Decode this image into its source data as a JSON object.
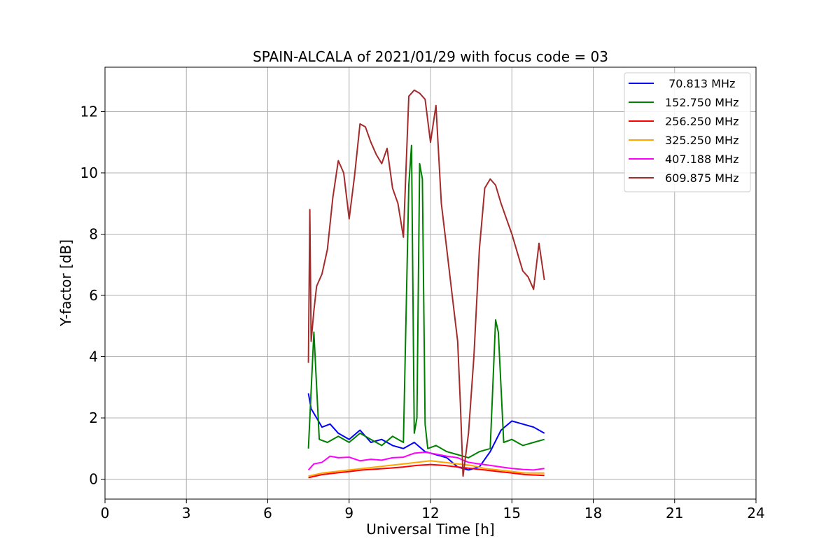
{
  "chart_data": {
    "type": "line",
    "title": "SPAIN-ALCALA of 2021/01/29 with focus code = 03",
    "xlabel": "Universal Time [h]",
    "ylabel": "Y-factor [dB]",
    "xlim": [
      0,
      24
    ],
    "ylim": [
      -0.65,
      13.45
    ],
    "xticks": [
      0,
      3,
      6,
      9,
      12,
      15,
      18,
      21,
      24
    ],
    "yticks": [
      0,
      2,
      4,
      6,
      8,
      10,
      12
    ],
    "xtick_labels": [
      "0",
      "3",
      "6",
      "9",
      "12",
      "15",
      "18",
      "21",
      "24"
    ],
    "ytick_labels": [
      "0",
      "2",
      "4",
      "6",
      "8",
      "10",
      "12"
    ],
    "grid": true,
    "legend_position": "top-right",
    "series": [
      {
        "name": " 70.813 MHz",
        "color": "#0000ff",
        "x": [
          7.5,
          7.6,
          7.8,
          8.0,
          8.3,
          8.6,
          9.0,
          9.4,
          9.8,
          10.2,
          10.6,
          11.0,
          11.4,
          11.8,
          12.2,
          12.6,
          13.0,
          13.4,
          13.8,
          14.2,
          14.6,
          15.0,
          15.4,
          15.8,
          16.2
        ],
        "y": [
          2.8,
          2.3,
          2.0,
          1.7,
          1.8,
          1.5,
          1.3,
          1.6,
          1.2,
          1.3,
          1.1,
          1.0,
          1.2,
          0.9,
          0.8,
          0.7,
          0.4,
          0.3,
          0.4,
          0.9,
          1.6,
          1.9,
          1.8,
          1.7,
          1.5
        ]
      },
      {
        "name": "152.750 MHz",
        "color": "#008000",
        "x": [
          7.5,
          7.7,
          7.9,
          8.2,
          8.6,
          9.0,
          9.4,
          9.8,
          10.2,
          10.6,
          11.0,
          11.2,
          11.3,
          11.4,
          11.5,
          11.6,
          11.7,
          11.8,
          11.9,
          12.2,
          12.6,
          13.0,
          13.4,
          13.8,
          14.2,
          14.4,
          14.5,
          14.7,
          15.0,
          15.4,
          15.8,
          16.2
        ],
        "y": [
          1.0,
          4.8,
          1.3,
          1.2,
          1.4,
          1.2,
          1.5,
          1.3,
          1.1,
          1.4,
          1.2,
          9.6,
          10.9,
          1.5,
          2.0,
          10.3,
          9.8,
          1.8,
          1.0,
          1.1,
          0.9,
          0.8,
          0.7,
          0.9,
          1.0,
          5.2,
          4.8,
          1.2,
          1.3,
          1.1,
          1.2,
          1.3
        ]
      },
      {
        "name": "256.250 MHz",
        "color": "#ff0000",
        "x": [
          7.5,
          8.0,
          8.5,
          9.0,
          9.5,
          10.0,
          10.5,
          11.0,
          11.5,
          12.0,
          12.5,
          13.0,
          13.5,
          14.0,
          14.5,
          15.0,
          15.5,
          16.2
        ],
        "y": [
          0.05,
          0.15,
          0.2,
          0.25,
          0.3,
          0.33,
          0.36,
          0.4,
          0.45,
          0.48,
          0.45,
          0.4,
          0.35,
          0.3,
          0.25,
          0.2,
          0.15,
          0.12
        ]
      },
      {
        "name": "325.250 MHz",
        "color": "#ffa500",
        "x": [
          7.5,
          8.0,
          8.5,
          9.0,
          9.5,
          10.0,
          10.5,
          11.0,
          11.5,
          12.0,
          12.5,
          13.0,
          13.5,
          14.0,
          14.5,
          15.0,
          15.5,
          16.2
        ],
        "y": [
          0.1,
          0.2,
          0.25,
          0.3,
          0.35,
          0.4,
          0.45,
          0.5,
          0.55,
          0.6,
          0.55,
          0.5,
          0.45,
          0.35,
          0.3,
          0.25,
          0.2,
          0.2
        ]
      },
      {
        "name": "407.188 MHz",
        "color": "#ff00ff",
        "x": [
          7.5,
          7.7,
          8.0,
          8.3,
          8.6,
          9.0,
          9.4,
          9.8,
          10.2,
          10.6,
          11.0,
          11.4,
          11.8,
          12.2,
          12.6,
          13.0,
          13.4,
          13.8,
          14.2,
          14.6,
          15.0,
          15.4,
          15.8,
          16.2
        ],
        "y": [
          0.3,
          0.5,
          0.55,
          0.75,
          0.7,
          0.72,
          0.6,
          0.65,
          0.62,
          0.7,
          0.72,
          0.85,
          0.88,
          0.82,
          0.75,
          0.7,
          0.55,
          0.5,
          0.45,
          0.4,
          0.35,
          0.32,
          0.3,
          0.35
        ]
      },
      {
        "name": "609.875 MHz",
        "color": "#a52a2a",
        "x": [
          7.5,
          7.55,
          7.6,
          7.7,
          7.8,
          8.0,
          8.2,
          8.4,
          8.6,
          8.8,
          9.0,
          9.2,
          9.4,
          9.6,
          9.8,
          10.0,
          10.2,
          10.4,
          10.6,
          10.8,
          11.0,
          11.2,
          11.4,
          11.6,
          11.8,
          12.0,
          12.2,
          12.4,
          12.6,
          12.8,
          13.0,
          13.1,
          13.2,
          13.4,
          13.6,
          13.8,
          14.0,
          14.2,
          14.4,
          14.6,
          14.8,
          15.0,
          15.2,
          15.4,
          15.6,
          15.8,
          16.0,
          16.2
        ],
        "y": [
          3.8,
          8.8,
          4.5,
          5.5,
          6.3,
          6.7,
          7.5,
          9.2,
          10.4,
          10.0,
          8.5,
          9.9,
          11.6,
          11.5,
          11.0,
          10.6,
          10.3,
          10.8,
          9.5,
          9.0,
          7.9,
          12.5,
          12.7,
          12.6,
          12.4,
          11.0,
          12.2,
          9.0,
          7.5,
          6.0,
          4.5,
          2.5,
          0.1,
          1.5,
          4.0,
          7.5,
          9.5,
          9.8,
          9.6,
          9.0,
          8.5,
          8.0,
          7.4,
          6.8,
          6.6,
          6.2,
          7.7,
          6.5
        ]
      }
    ]
  }
}
